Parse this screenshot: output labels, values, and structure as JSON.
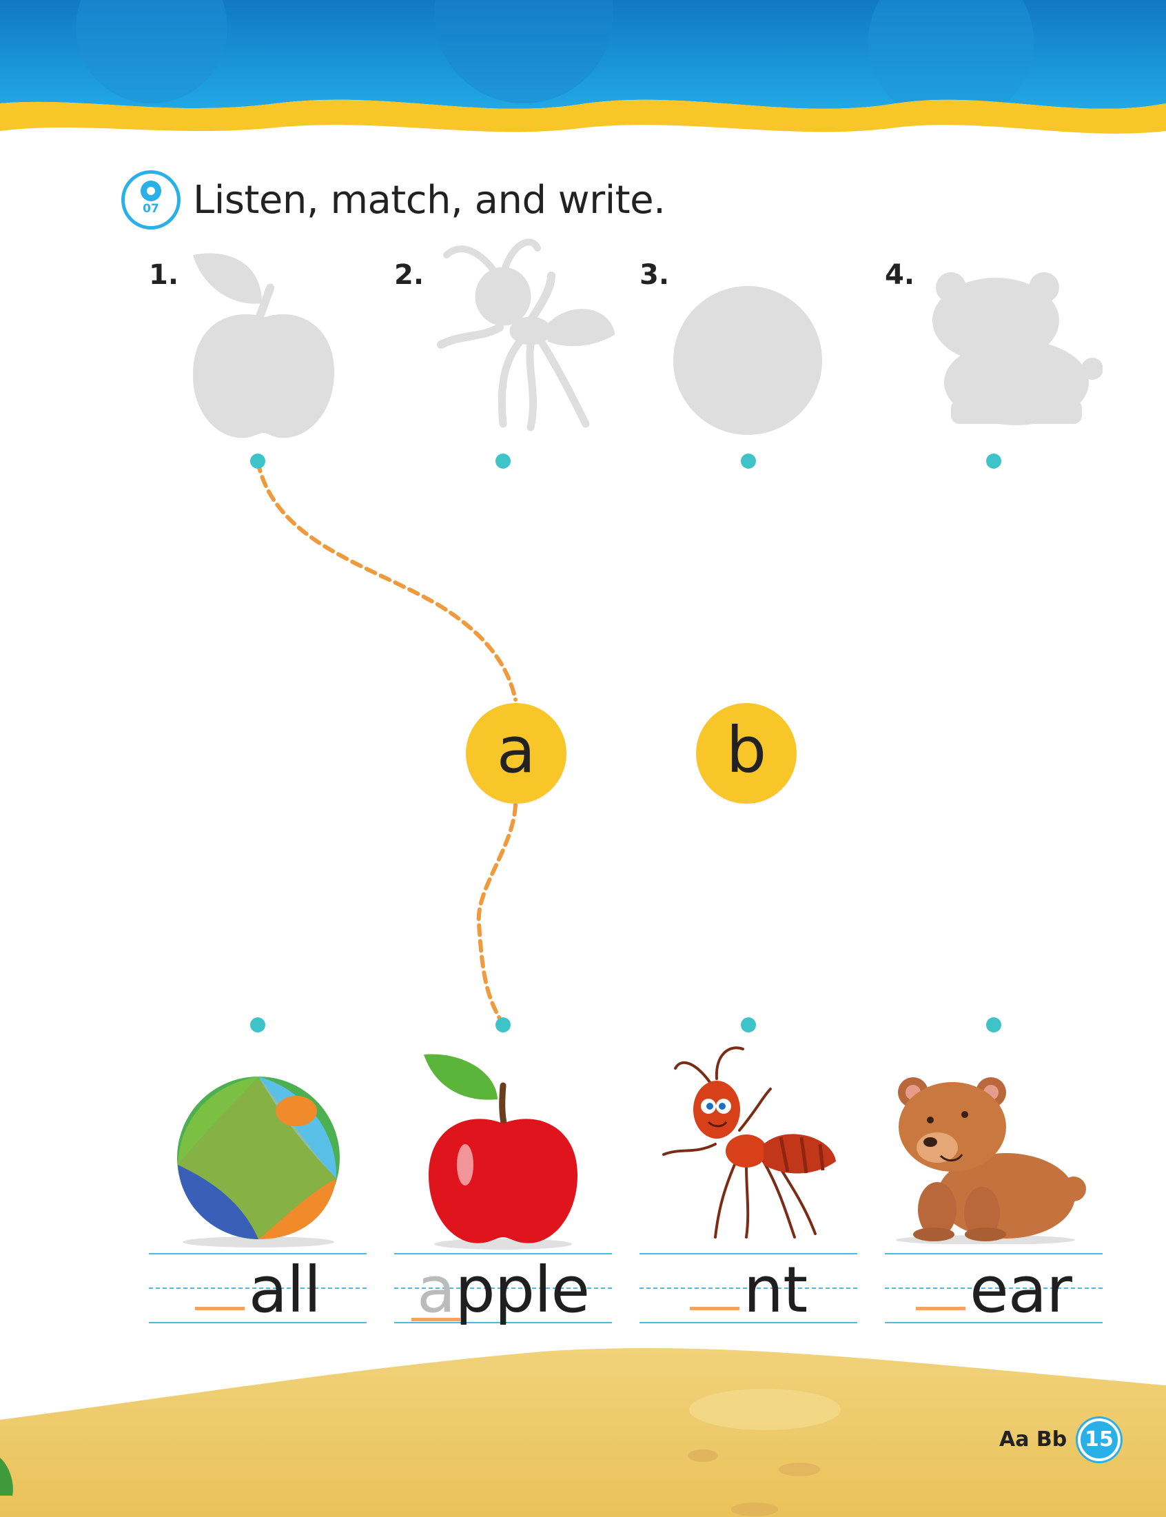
{
  "header": {
    "track_number": "07",
    "track_icon": "cd-audio-icon",
    "instruction": "Listen, match, and write."
  },
  "top_items": [
    {
      "number": "1.",
      "silhouette": "apple-silhouette"
    },
    {
      "number": "2.",
      "silhouette": "ant-silhouette"
    },
    {
      "number": "3.",
      "silhouette": "ball-silhouette"
    },
    {
      "number": "4.",
      "silhouette": "bear-silhouette"
    }
  ],
  "letter_options": [
    "a",
    "b"
  ],
  "bottom_items": [
    {
      "picture": "beach-ball",
      "blank": "",
      "word_rest": "all"
    },
    {
      "picture": "red-apple",
      "traced_letter": "a",
      "word_rest": "pple"
    },
    {
      "picture": "red-ant",
      "blank": "",
      "word_rest": "nt"
    },
    {
      "picture": "brown-bear",
      "blank": "",
      "word_rest": "ear"
    }
  ],
  "example_match": {
    "from": "1.",
    "via": "a",
    "to": "apple"
  },
  "footer": {
    "letters": "Aa Bb",
    "page_number": "15"
  },
  "colors": {
    "header_blue": "#1a9ad6",
    "wave_yellow": "#f8c629",
    "dot_teal": "#3dc3c8",
    "dash_orange": "#ef9a3c",
    "sand": "#ecc760",
    "badge_blue": "#2ab0e8"
  }
}
